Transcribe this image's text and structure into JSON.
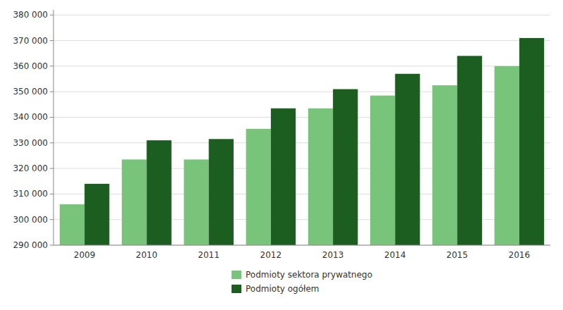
{
  "chart_data": {
    "type": "bar",
    "categories": [
      "2009",
      "2010",
      "2011",
      "2012",
      "2013",
      "2014",
      "2015",
      "2016"
    ],
    "series": [
      {
        "name": "Podmioty sektora prywatnego",
        "color": "#77C47A",
        "values": [
          306000,
          323500,
          323500,
          335500,
          343500,
          348500,
          352500,
          360000
        ]
      },
      {
        "name": "Podmioty ogółem",
        "color": "#1B5E20",
        "values": [
          314000,
          331000,
          331500,
          343500,
          351000,
          357000,
          364000,
          371000
        ]
      }
    ],
    "ylim": [
      290000,
      382000
    ],
    "yticks": [
      {
        "value": 290000,
        "label": "290 000"
      },
      {
        "value": 300000,
        "label": "300 000"
      },
      {
        "value": 310000,
        "label": "310 000"
      },
      {
        "value": 320000,
        "label": "320 000"
      },
      {
        "value": 330000,
        "label": "330 000"
      },
      {
        "value": 340000,
        "label": "340 000"
      },
      {
        "value": 350000,
        "label": "350 000"
      },
      {
        "value": 360000,
        "label": "360 000"
      },
      {
        "value": 370000,
        "label": "370 000"
      },
      {
        "value": 380000,
        "label": "380 000"
      }
    ],
    "grid": true,
    "legend": "bottom"
  }
}
